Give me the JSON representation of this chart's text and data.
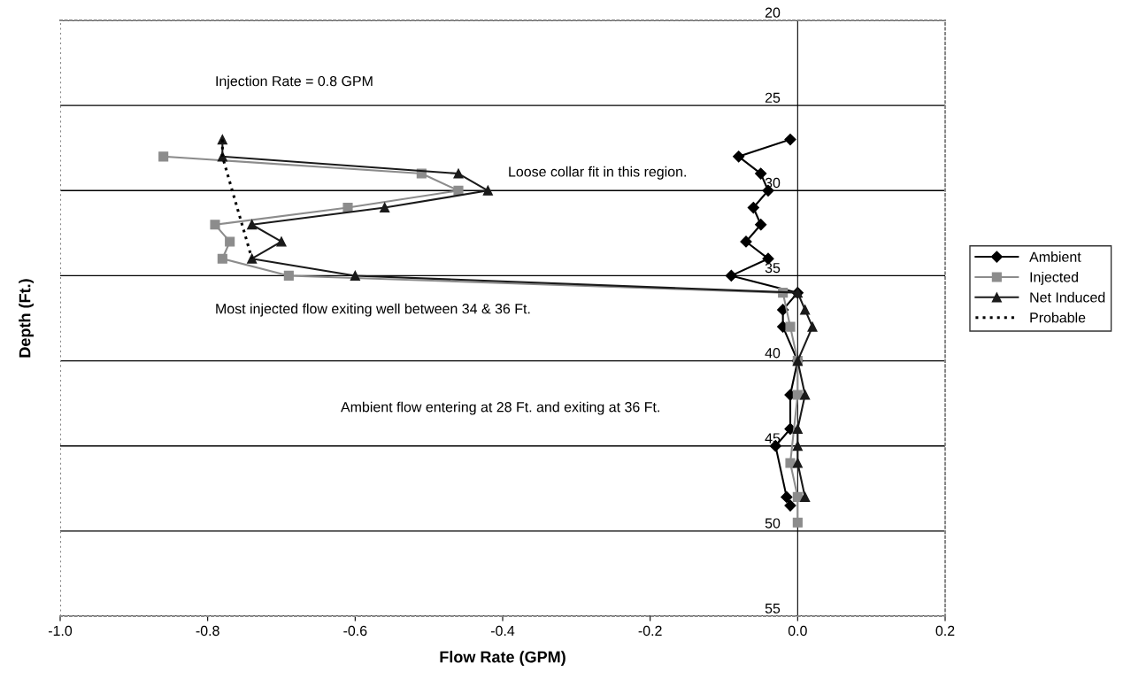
{
  "chart_data": {
    "type": "line",
    "xlabel": "Flow Rate (GPM)",
    "ylabel": "Depth (Ft.)",
    "xlim": [
      -1.0,
      0.2
    ],
    "xticks": [
      {
        "value": -1.0,
        "label": "-1.0"
      },
      {
        "value": -0.8,
        "label": "-0.8"
      },
      {
        "value": -0.6,
        "label": "-0.6"
      },
      {
        "value": -0.4,
        "label": "-0.4"
      },
      {
        "value": -0.2,
        "label": "-0.2"
      },
      {
        "value": 0.0,
        "label": "0.0"
      },
      {
        "value": 0.2,
        "label": "0.2"
      }
    ],
    "ylim": [
      55,
      20
    ],
    "yticks": [
      20,
      25,
      30,
      35,
      40,
      45,
      50,
      55
    ],
    "grid": "y",
    "legend": "right",
    "series": [
      {
        "name": "Ambient",
        "color": "#000000",
        "marker": "diamond",
        "line_style": "solid",
        "x": [
          -0.01,
          -0.08,
          -0.05,
          -0.04,
          -0.06,
          -0.05,
          -0.07,
          -0.04,
          -0.09,
          0.0,
          -0.02,
          -0.02,
          0.0,
          -0.01,
          -0.01,
          -0.03,
          -0.015,
          -0.01
        ],
        "values": [
          27,
          28,
          29,
          30,
          31,
          32,
          33,
          34,
          35,
          36,
          37,
          38,
          40,
          42,
          44,
          45,
          48,
          48.5
        ]
      },
      {
        "name": "Injected",
        "color": "#8c8c8c",
        "marker": "square",
        "line_style": "solid",
        "x": [
          -0.86,
          -0.51,
          -0.46,
          -0.61,
          -0.79,
          -0.77,
          -0.78,
          -0.69,
          -0.02,
          -0.01,
          0.0,
          0.0,
          -0.01,
          0.0,
          0.0
        ],
        "values": [
          28,
          29,
          30,
          31,
          32,
          33,
          34,
          35,
          36,
          38,
          40,
          42,
          46,
          48,
          49.5
        ]
      },
      {
        "name": "Net Induced",
        "color": "#1a1a1a",
        "marker": "triangle",
        "line_style": "solid",
        "x": [
          -0.78,
          -0.78,
          -0.46,
          -0.42,
          -0.56,
          -0.74,
          -0.7,
          -0.74,
          -0.6,
          0.0,
          0.01,
          0.02,
          0.0,
          0.01,
          0.0,
          0.0,
          0.0,
          0.01
        ],
        "values": [
          27,
          28,
          29,
          30,
          31,
          32,
          33,
          34,
          35,
          36,
          37,
          38,
          40,
          42,
          44,
          45,
          46,
          48
        ]
      },
      {
        "name": "Probable",
        "color": "#000000",
        "marker": "none",
        "line_style": "dotted",
        "x": [
          -0.78,
          -0.78,
          -0.74
        ],
        "values": [
          27,
          28,
          34
        ]
      }
    ],
    "annotations": [
      "Injection Rate = 0.8 GPM",
      "Loose collar fit in this region.",
      "Most injected flow exiting well between 34 & 36 Ft.",
      "Ambient flow entering at 28 Ft. and exiting at 36 Ft."
    ]
  }
}
